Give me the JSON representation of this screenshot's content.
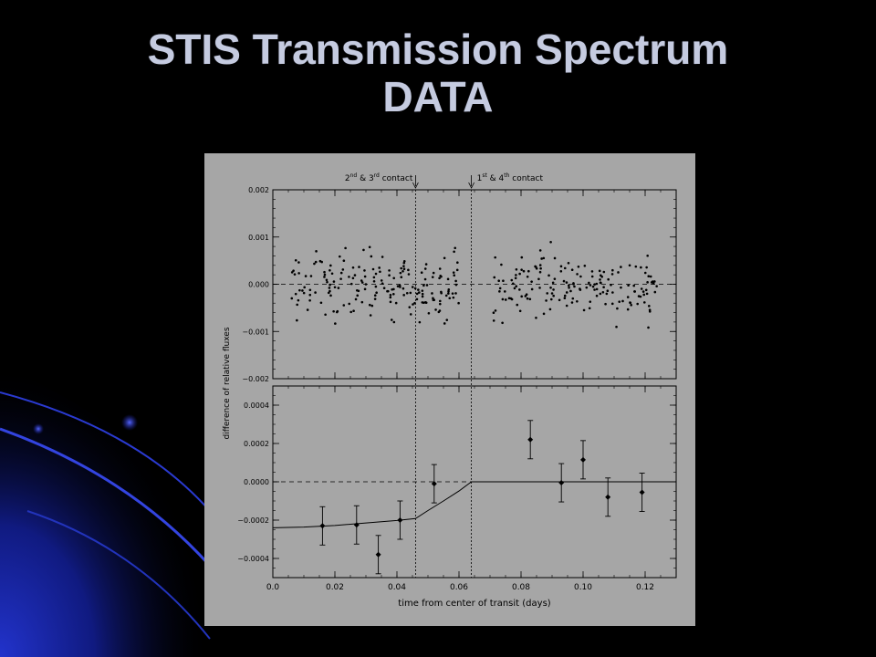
{
  "slide": {
    "title_line1": "STIS Transmission Spectrum",
    "title_line2": "DATA"
  },
  "colors": {
    "background": "#000000",
    "panel": "#a6a6a6",
    "title_text": "#c5cbe0",
    "swoosh": "#1a1aa8"
  },
  "chart_data": [
    {
      "type": "scatter",
      "panel": "top",
      "ylabel": "difference of relative fluxes",
      "xlim": [
        0.0,
        0.13
      ],
      "ylim": [
        -0.002,
        0.002
      ],
      "yticks": [
        0.002,
        0.001,
        0.0,
        -0.001,
        -0.002
      ],
      "ytick_labels": [
        "0.002",
        "0.001",
        "0.000",
        "−0.001",
        "−0.002"
      ],
      "reference_line_y": 0.0,
      "contact_markers": [
        {
          "x": 0.046,
          "label_main": "2",
          "label_sup1": "nd",
          "label_mid": " & 3",
          "label_sup2": "rd",
          "label_end": " contact"
        },
        {
          "x": 0.064,
          "label_main": "1",
          "label_sup1": "st",
          "label_mid": " & 4",
          "label_sup2": "th",
          "label_end": " contact"
        }
      ],
      "point_count_note_free": true
    },
    {
      "type": "scatter",
      "panel": "bottom",
      "xlabel": "time from center of transit (days)",
      "xlim": [
        0.0,
        0.13
      ],
      "ylim": [
        -0.0005,
        0.0005
      ],
      "xticks": [
        0.0,
        0.02,
        0.04,
        0.06,
        0.08,
        0.1,
        0.12
      ],
      "xtick_labels": [
        "0.0",
        "0.02",
        "0.04",
        "0.06",
        "0.08",
        "0.10",
        "0.12"
      ],
      "yticks": [
        0.0004,
        0.0002,
        0.0,
        -0.0002,
        -0.0004
      ],
      "ytick_labels": [
        "0.0004",
        "0.0002",
        "0.0000",
        "−0.0002",
        "−0.0004"
      ],
      "reference_line_y": 0.0,
      "points": [
        {
          "x": 0.016,
          "y": -0.00023,
          "err": 0.0001
        },
        {
          "x": 0.027,
          "y": -0.000225,
          "err": 0.0001
        },
        {
          "x": 0.034,
          "y": -0.00038,
          "err": 0.0001
        },
        {
          "x": 0.041,
          "y": -0.0002,
          "err": 0.0001
        },
        {
          "x": 0.052,
          "y": -1e-05,
          "err": 0.0001
        },
        {
          "x": 0.083,
          "y": 0.00022,
          "err": 0.0001
        },
        {
          "x": 0.093,
          "y": -5e-06,
          "err": 0.0001
        },
        {
          "x": 0.1,
          "y": 0.000115,
          "err": 0.0001
        },
        {
          "x": 0.108,
          "y": -8e-05,
          "err": 0.0001
        },
        {
          "x": 0.119,
          "y": -5.5e-05,
          "err": 0.0001
        }
      ],
      "model_curve": {
        "x": [
          0.0,
          0.01,
          0.02,
          0.03,
          0.04,
          0.046,
          0.05,
          0.055,
          0.06,
          0.064,
          0.13
        ],
        "y": [
          -0.00024,
          -0.000236,
          -0.000228,
          -0.000215,
          -0.000202,
          -0.000192,
          -0.00015,
          -0.0001,
          -4.8e-05,
          0.0,
          0.0
        ]
      }
    }
  ]
}
